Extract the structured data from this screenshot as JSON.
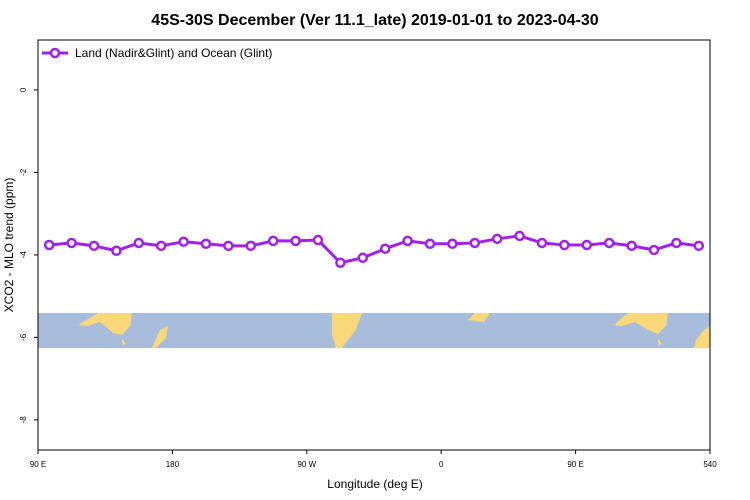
{
  "chart_data": {
    "type": "line",
    "title": "45S-30S December (Ver 11.1_late)   2019-01-01 to 2023-04-30",
    "x_label": "Longitude (deg E)",
    "y_label": "XCO2 - MLO trend (ppm)",
    "x": [
      97.5,
      112.5,
      127.5,
      142.5,
      157.5,
      172.5,
      187.5,
      202.5,
      217.5,
      232.5,
      247.5,
      262.5,
      277.5,
      292.5,
      307.5,
      322.5,
      337.5,
      352.5,
      367.5,
      382.5,
      397.5,
      412.5,
      427.5,
      442.5,
      457.5,
      472.5,
      487.5,
      502.5,
      517.5,
      532.5
    ],
    "series": [
      {
        "name": "Land (Nadir&Glint) and Ocean (Glint)",
        "color": "#a020f0",
        "values": [
          -3.76,
          -3.71,
          -3.78,
          -3.9,
          -3.71,
          -3.78,
          -3.68,
          -3.73,
          -3.78,
          -3.78,
          -3.66,
          -3.66,
          -3.64,
          -4.19,
          -4.07,
          -3.85,
          -3.66,
          -3.73,
          -3.73,
          -3.71,
          -3.61,
          -3.54,
          -3.71,
          -3.76,
          -3.76,
          -3.71,
          -3.78,
          -3.88,
          -3.71,
          -3.78
        ]
      }
    ],
    "xlim": [
      90,
      540
    ],
    "xticks": [
      {
        "value": 90,
        "label": "90 E"
      },
      180,
      {
        "value": 270,
        "label": "90 W"
      },
      {
        "value": 360,
        "label": "0"
      },
      {
        "value": 450,
        "label": "90 E"
      },
      540
    ],
    "ylim": [
      -8.73,
      1.21
    ],
    "yticks": [
      0,
      -2,
      -4,
      -6,
      -8
    ],
    "legend": "top-left"
  }
}
